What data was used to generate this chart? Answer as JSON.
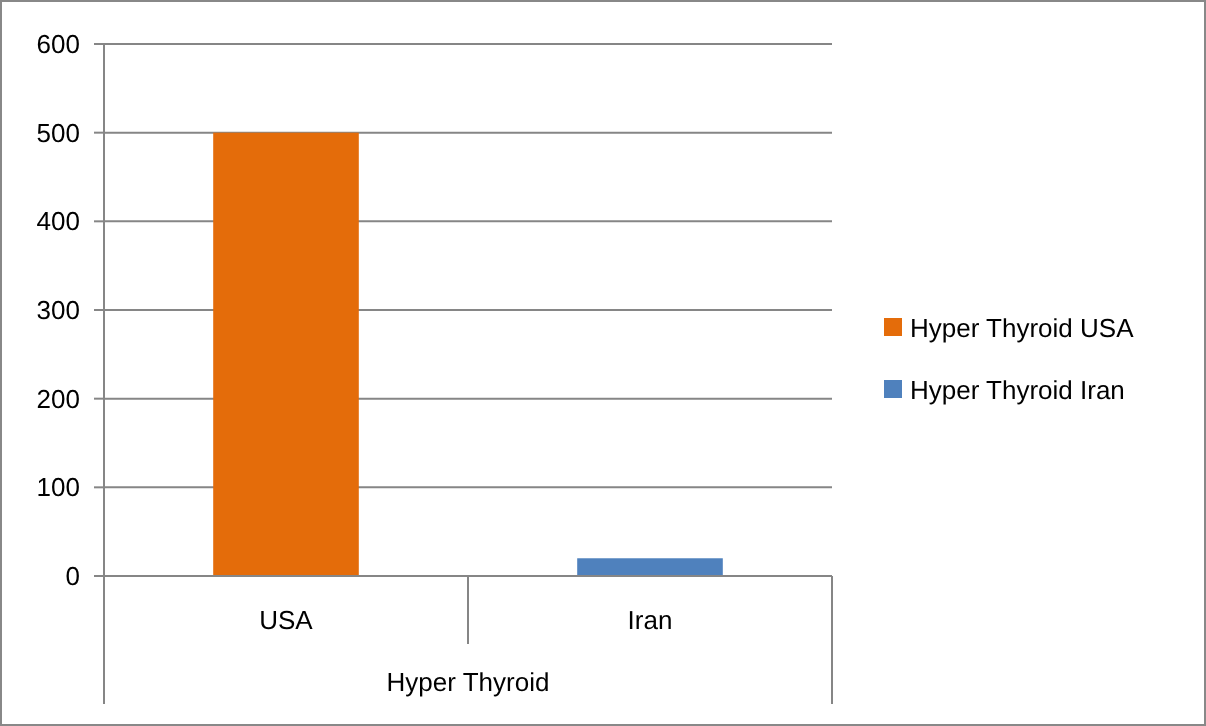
{
  "chart_data": {
    "type": "bar",
    "categories": [
      "USA",
      "Iran"
    ],
    "xlabel": "Hyper Thyroid",
    "series": [
      {
        "name": "Hyper Thyroid USA",
        "color": "#e46c0a",
        "values": [
          500,
          null
        ]
      },
      {
        "name": "Hyper Thyroid Iran",
        "color": "#4f81bd",
        "values": [
          null,
          20
        ]
      }
    ],
    "ylim": [
      0,
      600
    ],
    "yticks": [
      0,
      100,
      200,
      300,
      400,
      500,
      600
    ],
    "grid": "y",
    "legend": "right"
  }
}
